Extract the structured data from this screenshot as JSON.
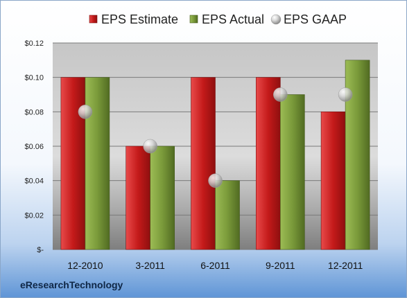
{
  "chart_data": {
    "type": "bar",
    "categories": [
      "12-2010",
      "3-2011",
      "6-2011",
      "9-2011",
      "12-2011"
    ],
    "series": [
      {
        "name": "EPS Estimate",
        "kind": "bar",
        "color": "#cc1f1f",
        "values": [
          0.1,
          0.06,
          0.1,
          0.1,
          0.08
        ]
      },
      {
        "name": "EPS Actual",
        "kind": "bar",
        "color": "#7a9a3a",
        "values": [
          0.1,
          0.06,
          0.04,
          0.09,
          0.11
        ]
      },
      {
        "name": "EPS GAAP",
        "kind": "marker",
        "color": "#c0c0c0",
        "values": [
          0.08,
          0.06,
          0.04,
          0.09,
          0.09
        ]
      }
    ],
    "y_ticks": [
      0,
      0.02,
      0.04,
      0.06,
      0.08,
      0.1,
      0.12
    ],
    "y_tick_labels": [
      "$-",
      "$0.02",
      "$0.04",
      "$0.06",
      "$0.08",
      "$0.10",
      "$0.12"
    ],
    "ylim": [
      0,
      0.12
    ],
    "grid": true,
    "legend_position": "top"
  },
  "footer": {
    "brand": "eResearchTechnology"
  }
}
